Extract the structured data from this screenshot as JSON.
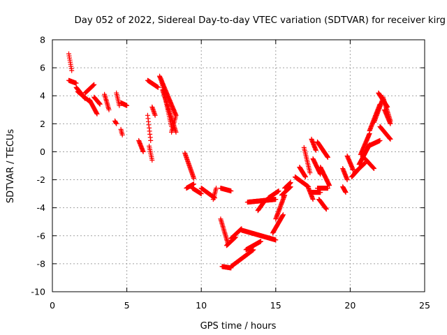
{
  "chart_data": {
    "type": "scatter",
    "title": "Day 052 of 2022, Sidereal Day-to-day VTEC variation (SDTVAR) for receiver kirg",
    "xlabel": "GPS time / hours",
    "ylabel": "SDTVAR / TECUs",
    "xlim": [
      0,
      25
    ],
    "ylim": [
      -10,
      8
    ],
    "xticks": [
      "0",
      "5",
      "10",
      "15",
      "20",
      "25"
    ],
    "yticks": [
      "-10",
      "-8",
      "-6",
      "-4",
      "-2",
      "0",
      "2",
      "4",
      "6",
      "8"
    ],
    "grid": true,
    "marker": "+",
    "color": "#ff0000",
    "segments": [
      {
        "x": [
          1.1,
          1.3
        ],
        "y": [
          7.0,
          5.8
        ]
      },
      {
        "x": [
          1.1,
          1.6
        ],
        "y": [
          5.1,
          4.9
        ]
      },
      {
        "x": [
          1.6,
          2.2
        ],
        "y": [
          4.6,
          3.8
        ]
      },
      {
        "x": [
          1.7,
          2.5
        ],
        "y": [
          4.3,
          3.6
        ]
      },
      {
        "x": [
          2.2,
          2.8
        ],
        "y": [
          4.2,
          4.8
        ]
      },
      {
        "x": [
          2.5,
          3.0
        ],
        "y": [
          3.7,
          2.7
        ]
      },
      {
        "x": [
          2.8,
          3.2
        ],
        "y": [
          3.9,
          3.4
        ]
      },
      {
        "x": [
          3.5,
          3.8
        ],
        "y": [
          4.1,
          3.0
        ]
      },
      {
        "x": [
          4.3,
          4.5
        ],
        "y": [
          4.2,
          3.3
        ]
      },
      {
        "x": [
          4.6,
          5.0
        ],
        "y": [
          3.5,
          3.3
        ]
      },
      {
        "x": [
          4.6,
          4.7
        ],
        "y": [
          1.6,
          1.2
        ]
      },
      {
        "x": [
          4.2,
          4.3
        ],
        "y": [
          2.2,
          2.0
        ]
      },
      {
        "x": [
          5.8,
          6.1
        ],
        "y": [
          0.8,
          0.0
        ]
      },
      {
        "x": [
          6.4,
          6.6
        ],
        "y": [
          2.6,
          0.8
        ]
      },
      {
        "x": [
          6.5,
          6.7
        ],
        "y": [
          0.4,
          -0.6
        ]
      },
      {
        "x": [
          6.7,
          6.9
        ],
        "y": [
          3.2,
          2.6
        ]
      },
      {
        "x": [
          6.4,
          7.1
        ],
        "y": [
          5.1,
          4.6
        ]
      },
      {
        "x": [
          7.2,
          8.3
        ],
        "y": [
          5.4,
          2.6
        ]
      },
      {
        "x": [
          7.3,
          8.0
        ],
        "y": [
          5.2,
          1.8
        ]
      },
      {
        "x": [
          7.4,
          8.3
        ],
        "y": [
          4.4,
          1.4
        ]
      },
      {
        "x": [
          8.3,
          8.0
        ],
        "y": [
          2.6,
          1.4
        ]
      },
      {
        "x": [
          8.9,
          9.5
        ],
        "y": [
          -0.1,
          -1.9
        ]
      },
      {
        "x": [
          9.5,
          9.0
        ],
        "y": [
          -2.3,
          -2.6
        ]
      },
      {
        "x": [
          9.4,
          10.0
        ],
        "y": [
          -2.6,
          -3.0
        ]
      },
      {
        "x": [
          10.0,
          10.9
        ],
        "y": [
          -2.6,
          -3.3
        ]
      },
      {
        "x": [
          10.8,
          11.0
        ],
        "y": [
          -3.4,
          -2.6
        ]
      },
      {
        "x": [
          11.3,
          12.0
        ],
        "y": [
          -2.6,
          -2.8
        ]
      },
      {
        "x": [
          11.3,
          11.8
        ],
        "y": [
          -4.8,
          -6.6
        ]
      },
      {
        "x": [
          11.7,
          12.3
        ],
        "y": [
          -6.7,
          -6.1
        ]
      },
      {
        "x": [
          12.0,
          12.7
        ],
        "y": [
          -6.2,
          -5.5
        ]
      },
      {
        "x": [
          11.4,
          12.0
        ],
        "y": [
          -8.2,
          -8.3
        ]
      },
      {
        "x": [
          12.0,
          13.5
        ],
        "y": [
          -8.2,
          -7.0
        ]
      },
      {
        "x": [
          13.0,
          14.0
        ],
        "y": [
          -7.0,
          -6.4
        ]
      },
      {
        "x": [
          12.7,
          15.0
        ],
        "y": [
          -5.6,
          -6.3
        ]
      },
      {
        "x": [
          13.1,
          15.0
        ],
        "y": [
          -3.6,
          -3.4
        ]
      },
      {
        "x": [
          13.8,
          14.2
        ],
        "y": [
          -4.2,
          -3.6
        ]
      },
      {
        "x": [
          14.5,
          15.2
        ],
        "y": [
          -3.3,
          -2.8
        ]
      },
      {
        "x": [
          14.8,
          15.5
        ],
        "y": [
          -5.8,
          -4.5
        ]
      },
      {
        "x": [
          15.0,
          15.6
        ],
        "y": [
          -4.8,
          -3.1
        ]
      },
      {
        "x": [
          15.4,
          16.0
        ],
        "y": [
          -3.1,
          -2.5
        ]
      },
      {
        "x": [
          15.6,
          16.0
        ],
        "y": [
          -2.6,
          -2.2
        ]
      },
      {
        "x": [
          16.3,
          17.2
        ],
        "y": [
          -1.8,
          -2.5
        ]
      },
      {
        "x": [
          16.6,
          17.0
        ],
        "y": [
          -1.1,
          -1.8
        ]
      },
      {
        "x": [
          16.9,
          17.3
        ],
        "y": [
          0.3,
          -1.5
        ]
      },
      {
        "x": [
          17.2,
          17.5
        ],
        "y": [
          -2.6,
          -3.4
        ]
      },
      {
        "x": [
          17.4,
          17.7
        ],
        "y": [
          0.9,
          0.1
        ]
      },
      {
        "x": [
          17.5,
          18.0
        ],
        "y": [
          -0.5,
          -1.6
        ]
      },
      {
        "x": [
          17.8,
          18.5
        ],
        "y": [
          0.7,
          -0.4
        ]
      },
      {
        "x": [
          18.0,
          18.6
        ],
        "y": [
          -1.1,
          -2.4
        ]
      },
      {
        "x": [
          17.8,
          18.5
        ],
        "y": [
          -2.6,
          -2.6
        ]
      },
      {
        "x": [
          17.9,
          18.4
        ],
        "y": [
          -3.4,
          -4.1
        ]
      },
      {
        "x": [
          17.4,
          18.0
        ],
        "y": [
          -2.9,
          -2.9
        ]
      },
      {
        "x": [
          19.5,
          19.8
        ],
        "y": [
          -1.2,
          -2.0
        ]
      },
      {
        "x": [
          19.5,
          19.7
        ],
        "y": [
          -2.5,
          -2.9
        ]
      },
      {
        "x": [
          19.8,
          20.2
        ],
        "y": [
          -0.3,
          -1.3
        ]
      },
      {
        "x": [
          20.1,
          20.6
        ],
        "y": [
          -1.8,
          -1.2
        ]
      },
      {
        "x": [
          20.3,
          21.0
        ],
        "y": [
          -1.5,
          -0.8
        ]
      },
      {
        "x": [
          20.6,
          21.3
        ],
        "y": [
          -0.9,
          0.5
        ]
      },
      {
        "x": [
          20.7,
          21.3
        ],
        "y": [
          -0.2,
          1.3
        ]
      },
      {
        "x": [
          21.0,
          21.6
        ],
        "y": [
          -0.5,
          -1.2
        ]
      },
      {
        "x": [
          21.2,
          22.0
        ],
        "y": [
          0.4,
          0.8
        ]
      },
      {
        "x": [
          21.3,
          22.0
        ],
        "y": [
          1.5,
          3.4
        ]
      },
      {
        "x": [
          21.6,
          22.2
        ],
        "y": [
          2.1,
          3.8
        ]
      },
      {
        "x": [
          21.9,
          22.5
        ],
        "y": [
          4.2,
          3.2
        ]
      },
      {
        "x": [
          22.2,
          22.7
        ],
        "y": [
          3.9,
          2.2
        ]
      },
      {
        "x": [
          22.0,
          22.7
        ],
        "y": [
          1.8,
          0.9
        ]
      },
      {
        "x": [
          22.3,
          22.7
        ],
        "y": [
          3.0,
          2.0
        ]
      }
    ]
  }
}
